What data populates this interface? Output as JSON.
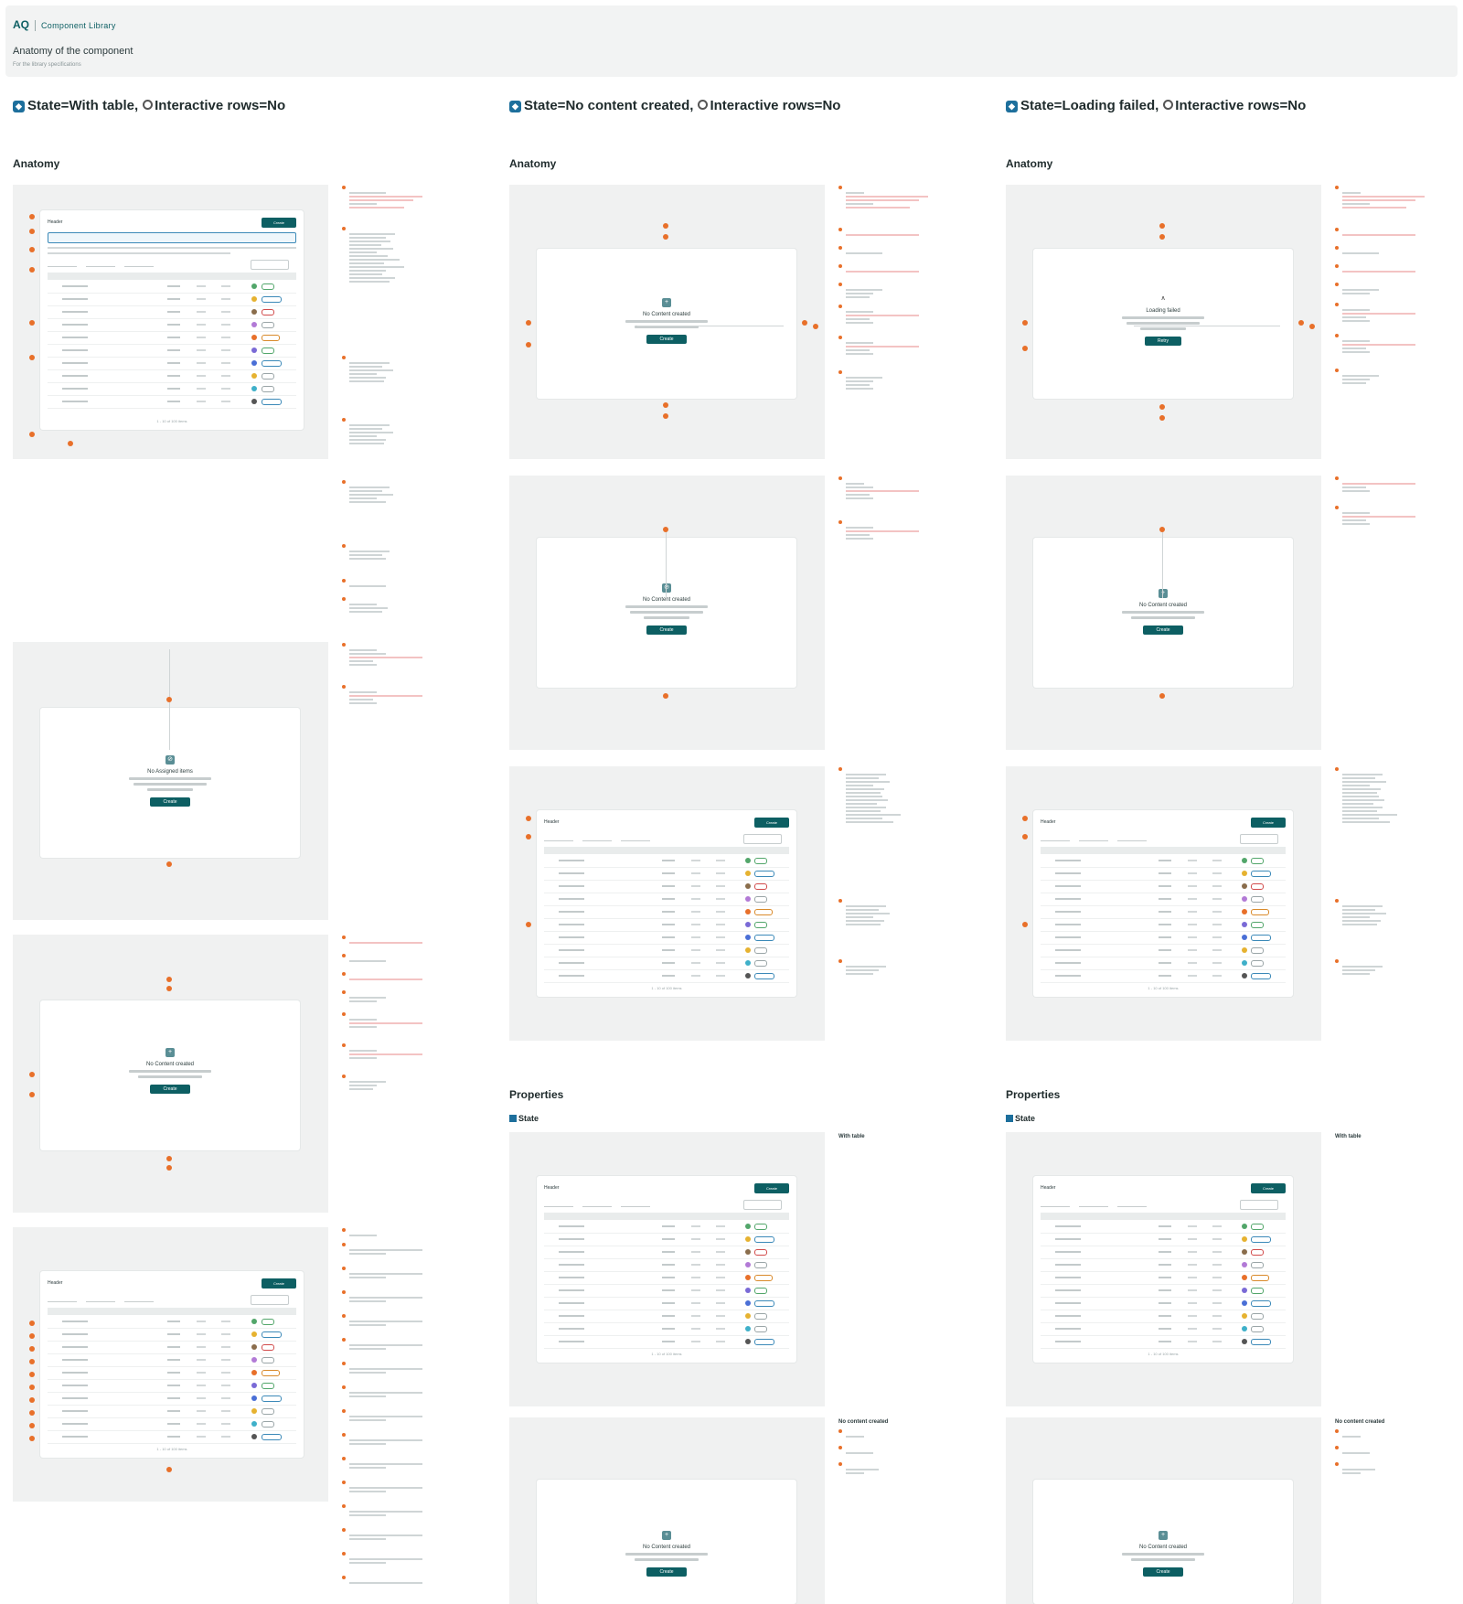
{
  "header": {
    "brand": "AQ",
    "library": "Component Library",
    "title": "Anatomy of the component",
    "subtitle": "For the library specifications"
  },
  "columns": [
    {
      "title_state": "State=With table,",
      "title_rows": "Interactive rows=No",
      "anatomy": "Anatomy"
    },
    {
      "title_state": "State=No content created,",
      "title_rows": "Interactive rows=No",
      "anatomy": "Anatomy"
    },
    {
      "title_state": "State=Loading failed,",
      "title_rows": "Interactive rows=No",
      "anatomy": "Anatomy"
    }
  ],
  "properties": {
    "heading": "Properties",
    "state": "State",
    "values": [
      "With table",
      "No content created"
    ]
  },
  "table": {
    "title": "Header",
    "action": "Create",
    "search": "Search",
    "footer": "1 - 10 of 100 items"
  },
  "placeholders": {
    "col1_state1": {
      "title": "No Assigned items",
      "action": "Create"
    },
    "col1_state2": {
      "title": "No Content created",
      "action": "Create"
    },
    "col2_state1": {
      "title": "No Content created",
      "action": "Create"
    },
    "col2_state2": {
      "title": "No Content created",
      "action": "Create"
    },
    "col3_state1": {
      "title": "Loading failed",
      "action": "Retry"
    },
    "col3_state2": {
      "title": "No Content created",
      "action": "Create"
    },
    "prop_col2": {
      "title": "No Content created",
      "action": "Create"
    },
    "prop_col3": {
      "title": "No Content created",
      "action": "Create"
    }
  },
  "colors": {
    "accent": "#0d5f63",
    "marker": "#e8702a",
    "frame": "#f0f1f1"
  }
}
